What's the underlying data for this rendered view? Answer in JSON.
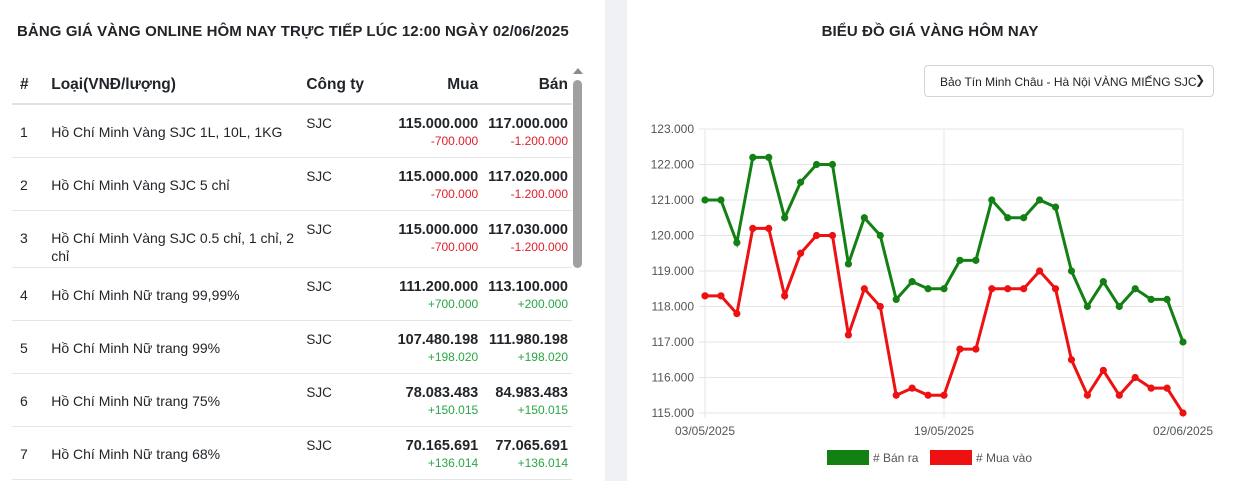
{
  "left_panel": {
    "title": "BẢNG GIÁ VÀNG ONLINE HÔM NAY TRỰC TIẾP LÚC 12:00 NGÀY 02/06/2025",
    "columns": [
      "#",
      "Loại(VNĐ/lượng)",
      "Công ty",
      "Mua",
      "Bán"
    ],
    "rows": [
      {
        "no": "1",
        "type": "Hồ Chí Minh Vàng SJC 1L, 10L, 1KG",
        "company": "SJC",
        "buy": "115.000.000",
        "buy_change": "-700.000",
        "sell": "117.000.000",
        "sell_change": "-1.200.000",
        "trend": "neg"
      },
      {
        "no": "2",
        "type": "Hồ Chí Minh Vàng SJC 5 chỉ",
        "company": "SJC",
        "buy": "115.000.000",
        "buy_change": "-700.000",
        "sell": "117.020.000",
        "sell_change": "-1.200.000",
        "trend": "neg"
      },
      {
        "no": "3",
        "type": "Hồ Chí Minh Vàng SJC 0.5 chỉ, 1 chỉ, 2 chỉ",
        "company": "SJC",
        "buy": "115.000.000",
        "buy_change": "-700.000",
        "sell": "117.030.000",
        "sell_change": "-1.200.000",
        "trend": "neg"
      },
      {
        "no": "4",
        "type": "Hồ Chí Minh Nữ trang 99,99%",
        "company": "SJC",
        "buy": "111.200.000",
        "buy_change": "+700.000",
        "sell": "113.100.000",
        "sell_change": "+200.000",
        "trend": "pos"
      },
      {
        "no": "5",
        "type": "Hồ Chí Minh Nữ trang 99%",
        "company": "SJC",
        "buy": "107.480.198",
        "buy_change": "+198.020",
        "sell": "111.980.198",
        "sell_change": "+198.020",
        "trend": "pos"
      },
      {
        "no": "6",
        "type": "Hồ Chí Minh Nữ trang 75%",
        "company": "SJC",
        "buy": "78.083.483",
        "buy_change": "+150.015",
        "sell": "84.983.483",
        "sell_change": "+150.015",
        "trend": "pos"
      },
      {
        "no": "7",
        "type": "Hồ Chí Minh Nữ trang 68%",
        "company": "SJC",
        "buy": "70.165.691",
        "buy_change": "+136.014",
        "sell": "77.065.691",
        "sell_change": "+136.014",
        "trend": "pos"
      }
    ]
  },
  "right_panel": {
    "title": "BIỂU ĐỒ GIÁ VÀNG HÔM NAY",
    "selected_option": "Bảo Tín Minh Châu - Hà Nội VÀNG MIẾNG SJC"
  },
  "colors": {
    "sell": "#128012",
    "buy": "#ee1111",
    "negative_text": "#e0202c",
    "positive_text": "#28a745"
  },
  "chart_data": {
    "type": "line",
    "x_tick_labels": [
      "03/05/2025",
      "19/05/2025",
      "02/06/2025"
    ],
    "y_tick_labels": [
      "115.000",
      "116.000",
      "117.000",
      "118.000",
      "119.000",
      "120.000",
      "121.000",
      "122.000",
      "123.000"
    ],
    "ylim": [
      115000,
      123000
    ],
    "grid": true,
    "legend_position": "bottom",
    "series": [
      {
        "name": "# Bán ra",
        "color": "#128012",
        "values": [
          121000,
          121000,
          119800,
          122200,
          122200,
          120500,
          121500,
          122000,
          122000,
          119200,
          120500,
          120000,
          118200,
          118700,
          118500,
          118500,
          119300,
          119300,
          121000,
          120500,
          120500,
          121000,
          120800,
          119000,
          118000,
          118700,
          118000,
          118500,
          118200,
          118200,
          117000
        ]
      },
      {
        "name": "# Mua vào",
        "color": "#ee1111",
        "values": [
          118300,
          118300,
          117800,
          120200,
          120200,
          118300,
          119500,
          120000,
          120000,
          117200,
          118500,
          118000,
          115500,
          115700,
          115500,
          115500,
          116800,
          116800,
          118500,
          118500,
          118500,
          119000,
          118500,
          116500,
          115500,
          116200,
          115500,
          116000,
          115700,
          115700,
          115000
        ]
      }
    ]
  }
}
